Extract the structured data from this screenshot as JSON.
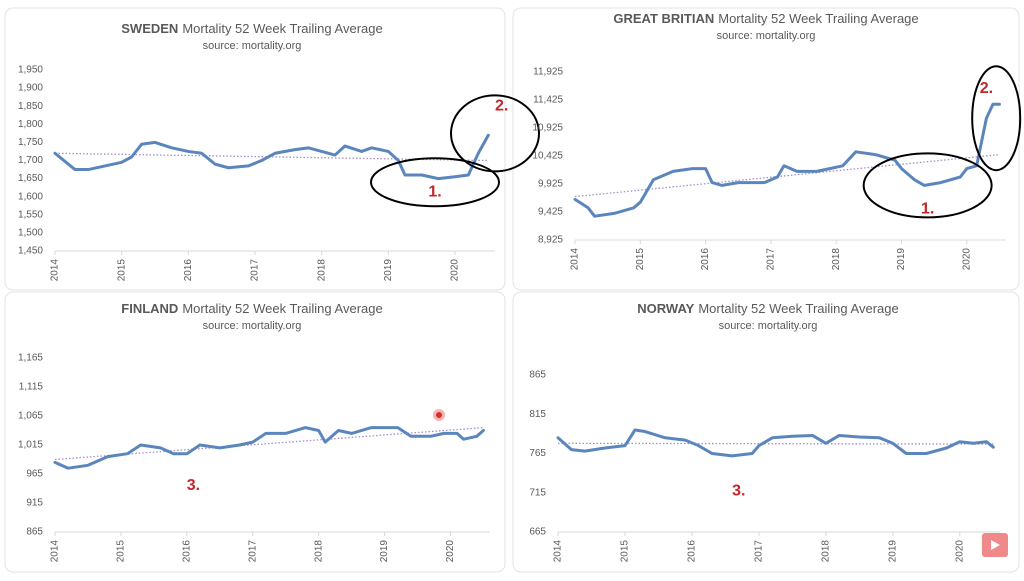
{
  "chart_data": [
    {
      "type": "line",
      "country": "SWEDEN",
      "title": "Mortality 52 Week Trailing Average",
      "subtitle": "source: mortality.org",
      "xlim": [
        2014,
        2020.6
      ],
      "xticks": [
        2014,
        2015,
        2016,
        2017,
        2018,
        2019,
        2020
      ],
      "ylim": [
        1450,
        1950
      ],
      "yticks": [
        {
          "value": 1450,
          "label": "1,450"
        },
        {
          "value": 1500,
          "label": "1,500"
        },
        {
          "value": 1550,
          "label": "1,550"
        },
        {
          "value": 1600,
          "label": "1,600"
        },
        {
          "value": 1650,
          "label": "1,650"
        },
        {
          "value": 1700,
          "label": "1,700"
        },
        {
          "value": 1750,
          "label": "1,750"
        },
        {
          "value": 1800,
          "label": "1,800"
        },
        {
          "value": 1850,
          "label": "1,850"
        },
        {
          "value": 1900,
          "label": "1,900"
        },
        {
          "value": 1950,
          "label": "1,950"
        }
      ],
      "series": [
        {
          "color": "#5b86bd",
          "x": [
            2014.0,
            2014.1,
            2014.3,
            2014.5,
            2014.75,
            2015.0,
            2015.15,
            2015.3,
            2015.5,
            2015.75,
            2016.0,
            2016.2,
            2016.4,
            2016.6,
            2016.9,
            2017.1,
            2017.3,
            2017.6,
            2017.8,
            2018.0,
            2018.2,
            2018.35,
            2018.6,
            2018.75,
            2019.0,
            2019.15,
            2019.25,
            2019.5,
            2019.75,
            2020.0,
            2020.2,
            2020.35,
            2020.5
          ],
          "values": [
            1720,
            1705,
            1675,
            1675,
            1685,
            1695,
            1710,
            1745,
            1750,
            1735,
            1725,
            1720,
            1690,
            1680,
            1685,
            1700,
            1720,
            1730,
            1735,
            1725,
            1715,
            1740,
            1725,
            1735,
            1725,
            1700,
            1660,
            1660,
            1650,
            1655,
            1660,
            1720,
            1770
          ]
        }
      ],
      "trend": {
        "color": "#a58ccc",
        "x": [
          2014,
          2020.5
        ],
        "values": [
          1720,
          1700
        ]
      },
      "annotations": [
        "1.",
        "2."
      ]
    },
    {
      "type": "line",
      "country": "GREAT BRITIAN",
      "title": "Mortality 52 Week Trailing Average",
      "subtitle": "source: mortality.org",
      "xlim": [
        2014,
        2020.6
      ],
      "xticks": [
        2014,
        2015,
        2016,
        2017,
        2018,
        2019,
        2020
      ],
      "ylim": [
        8925,
        11925
      ],
      "yticks": [
        {
          "value": 8925,
          "label": "8,925"
        },
        {
          "value": 9425,
          "label": "9,425"
        },
        {
          "value": 9925,
          "label": "9,925"
        },
        {
          "value": 10425,
          "label": "10,425"
        },
        {
          "value": 10925,
          "label": "10,925"
        },
        {
          "value": 11425,
          "label": "11,425"
        },
        {
          "value": 11925,
          "label": "11,925"
        }
      ],
      "series": [
        {
          "color": "#5b86bd",
          "x": [
            2014.0,
            2014.2,
            2014.3,
            2014.6,
            2014.9,
            2015.0,
            2015.2,
            2015.5,
            2015.8,
            2016.0,
            2016.1,
            2016.25,
            2016.5,
            2016.9,
            2017.1,
            2017.2,
            2017.4,
            2017.7,
            2017.9,
            2018.1,
            2018.3,
            2018.6,
            2018.9,
            2019.0,
            2019.2,
            2019.35,
            2019.6,
            2019.9,
            2020.0,
            2020.15,
            2020.3,
            2020.4,
            2020.5
          ],
          "values": [
            9650,
            9500,
            9350,
            9400,
            9500,
            9600,
            10000,
            10150,
            10200,
            10200,
            9950,
            9900,
            9950,
            9950,
            10050,
            10250,
            10150,
            10150,
            10200,
            10250,
            10500,
            10450,
            10350,
            10200,
            10000,
            9900,
            9950,
            10050,
            10200,
            10250,
            11100,
            11350,
            11350
          ]
        }
      ],
      "trend": {
        "color": "#a58ccc",
        "x": [
          2014,
          2020.5
        ],
        "values": [
          9700,
          10450
        ]
      },
      "annotations": [
        "1.",
        "2."
      ]
    },
    {
      "type": "line",
      "country": "FINLAND",
      "title": "Mortality 52 Week Trailing Average",
      "subtitle": "source: mortality.org",
      "xlim": [
        2014,
        2020.6
      ],
      "xticks": [
        2014,
        2015,
        2016,
        2017,
        2018,
        2019,
        2020
      ],
      "ylim": [
        865,
        1165
      ],
      "yticks": [
        865,
        915,
        965,
        {
          "value": 1015,
          "label": "1,015"
        },
        {
          "value": 1065,
          "label": "1,065"
        },
        {
          "value": 1115,
          "label": "1,115"
        },
        {
          "value": 1165,
          "label": "1,165"
        }
      ],
      "series": [
        {
          "color": "#5b86bd",
          "x": [
            2014.0,
            2014.2,
            2014.5,
            2014.8,
            2015.1,
            2015.3,
            2015.6,
            2015.8,
            2016.0,
            2016.2,
            2016.5,
            2016.8,
            2017.0,
            2017.2,
            2017.5,
            2017.8,
            2018.0,
            2018.1,
            2018.3,
            2018.5,
            2018.8,
            2019.0,
            2019.2,
            2019.4,
            2019.7,
            2019.9,
            2020.1,
            2020.2,
            2020.4,
            2020.5
          ],
          "values": [
            985,
            975,
            980,
            995,
            1000,
            1015,
            1010,
            1000,
            1000,
            1015,
            1010,
            1015,
            1020,
            1035,
            1035,
            1045,
            1040,
            1020,
            1040,
            1035,
            1045,
            1045,
            1045,
            1030,
            1030,
            1035,
            1035,
            1025,
            1030,
            1040
          ]
        }
      ],
      "trend": {
        "color": "#a58ccc",
        "x": [
          2014,
          2020.5
        ],
        "values": [
          990,
          1045
        ]
      },
      "annotations": [
        "3."
      ]
    },
    {
      "type": "line",
      "country": "NORWAY",
      "title": "Mortality 52 Week Trailing Average",
      "subtitle": "source: mortality.org",
      "xlim": [
        2014,
        2020.6
      ],
      "xticks": [
        2014,
        2015,
        2016,
        2017,
        2018,
        2019,
        2020
      ],
      "ylim": [
        665,
        865
      ],
      "yticks": [
        665,
        715,
        765,
        815,
        865
      ],
      "series": [
        {
          "color": "#5b86bd",
          "x": [
            2014.0,
            2014.2,
            2014.4,
            2014.7,
            2015.0,
            2015.15,
            2015.3,
            2015.6,
            2015.9,
            2016.1,
            2016.3,
            2016.6,
            2016.9,
            2017.0,
            2017.2,
            2017.5,
            2017.8,
            2018.0,
            2018.2,
            2018.5,
            2018.8,
            2019.0,
            2019.2,
            2019.5,
            2019.8,
            2020.0,
            2020.2,
            2020.4,
            2020.5
          ],
          "values": [
            785,
            770,
            768,
            772,
            775,
            795,
            793,
            785,
            782,
            775,
            765,
            762,
            765,
            775,
            785,
            787,
            788,
            778,
            788,
            786,
            785,
            778,
            765,
            765,
            772,
            780,
            778,
            780,
            773
          ]
        }
      ],
      "trend": {
        "color": "#a58ccc",
        "x": [
          2014,
          2020.5
        ],
        "values": [
          778,
          777
        ]
      },
      "annotations": [
        "3."
      ]
    }
  ]
}
